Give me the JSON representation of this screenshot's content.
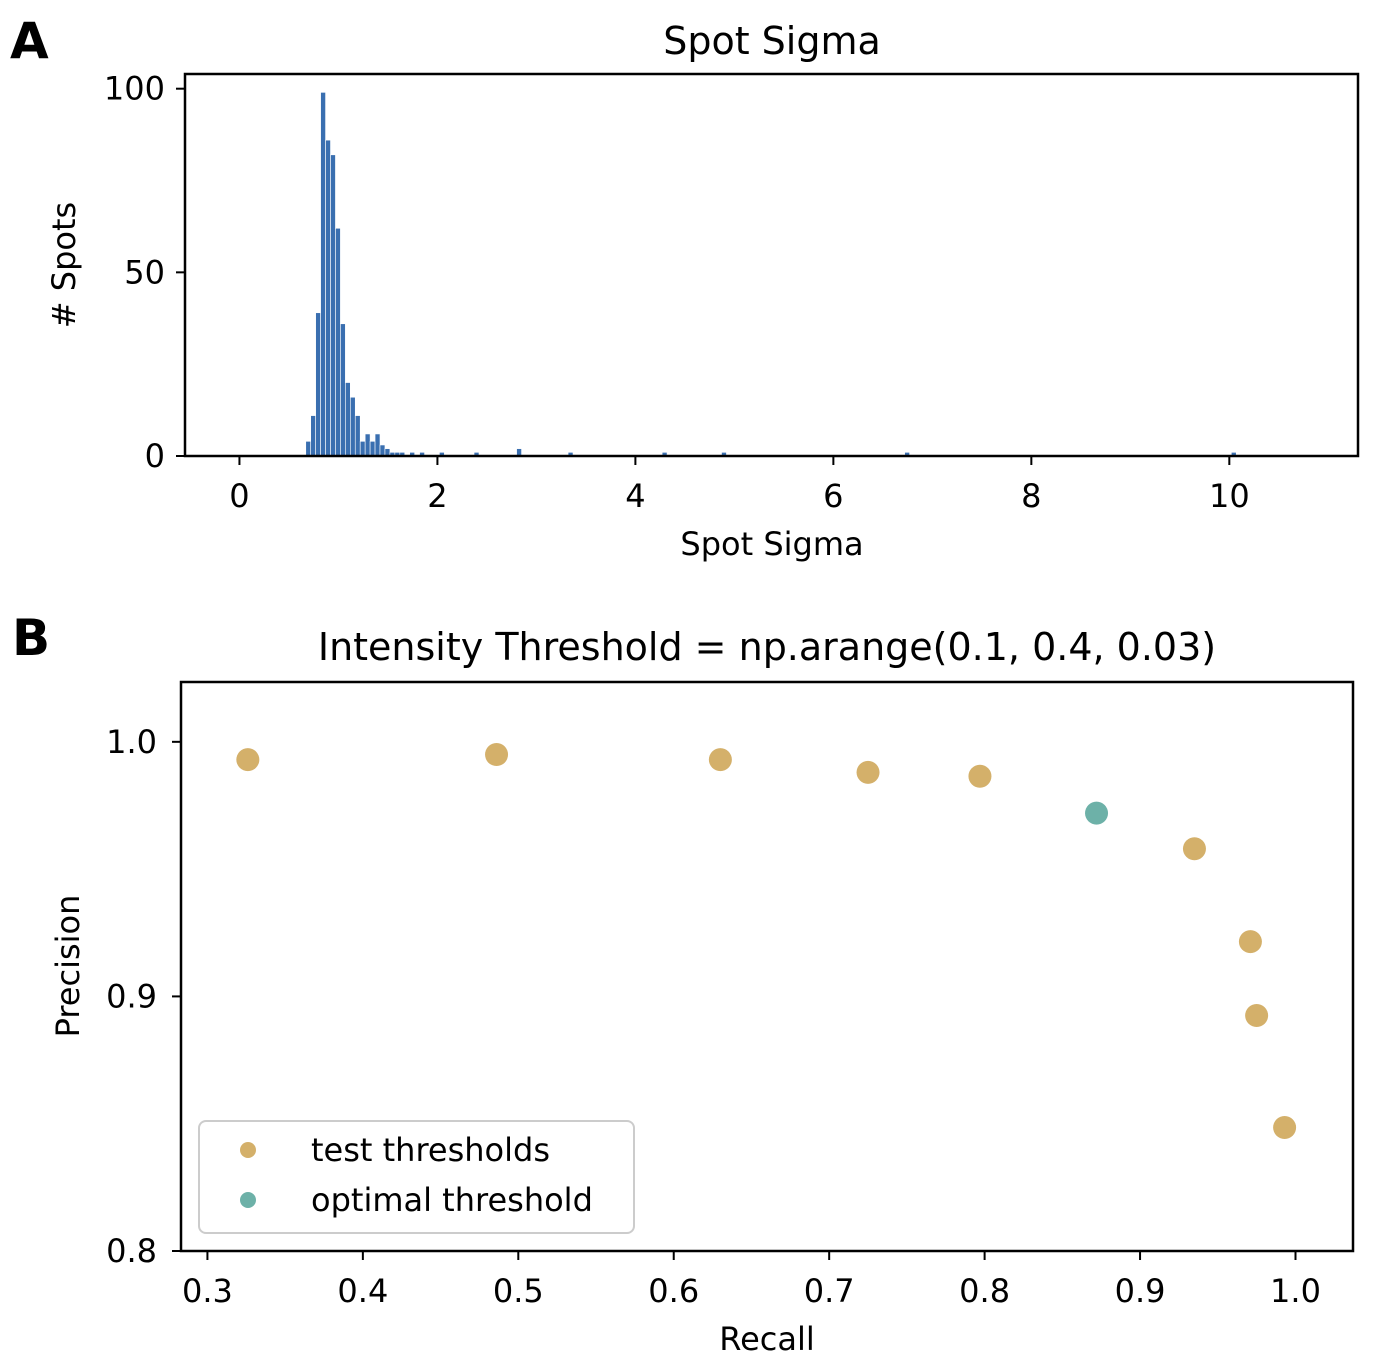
{
  "panel_labels": {
    "a": "A",
    "b": "B"
  },
  "chart_data": [
    {
      "type": "bar",
      "title": "Spot Sigma",
      "xlabel": "Spot Sigma",
      "ylabel": "# Spots",
      "xlim": [
        -0.55,
        11.3
      ],
      "ylim": [
        0,
        104
      ],
      "xticks": [
        "0",
        "2",
        "4",
        "6",
        "8",
        "10"
      ],
      "xtick_values": [
        0,
        2,
        4,
        6,
        8,
        10
      ],
      "yticks": [
        "0",
        "50",
        "100"
      ],
      "ytick_values": [
        0,
        50,
        100
      ],
      "bin_width": 0.05,
      "bin_starts": [
        0.67,
        0.72,
        0.77,
        0.82,
        0.87,
        0.92,
        0.97,
        1.02,
        1.07,
        1.12,
        1.17,
        1.22,
        1.27,
        1.32,
        1.37,
        1.42,
        1.47,
        1.52,
        1.57,
        1.62,
        1.72,
        1.82,
        2.02,
        2.37,
        2.8,
        3.32,
        4.27,
        4.87,
        6.72,
        10.02
      ],
      "counts": [
        4,
        11,
        39,
        99,
        86,
        82,
        62,
        36,
        20,
        16,
        11,
        4,
        6,
        4,
        6,
        3,
        2,
        1,
        1,
        1,
        1,
        1,
        1,
        1,
        2,
        1,
        1,
        1,
        1,
        1
      ],
      "colors": {
        "bar": "#3a6fb0"
      }
    },
    {
      "type": "scatter",
      "title": "Intensity Threshold = np.arange(0.1, 0.4, 0.03)",
      "xlabel": "Recall",
      "ylabel": "Precision",
      "xlim": [
        0.283,
        1.037
      ],
      "ylim": [
        0.8,
        1.0235
      ],
      "xticks": [
        "0.3",
        "0.4",
        "0.5",
        "0.6",
        "0.7",
        "0.8",
        "0.9",
        "1.0"
      ],
      "xtick_values": [
        0.3,
        0.4,
        0.5,
        0.6,
        0.7,
        0.8,
        0.9,
        1.0
      ],
      "yticks": [
        "0.8",
        "0.9",
        "1.0"
      ],
      "ytick_values": [
        0.8,
        0.9,
        1.0
      ],
      "legend_position": "lower-left",
      "series": [
        {
          "name": "test thresholds",
          "color": "#d4b06a",
          "points": [
            [
              0.326,
              0.993
            ],
            [
              0.486,
              0.995
            ],
            [
              0.63,
              0.993
            ],
            [
              0.725,
              0.988
            ],
            [
              0.797,
              0.9865
            ],
            [
              0.935,
              0.958
            ],
            [
              0.971,
              0.9215
            ],
            [
              0.975,
              0.8925
            ],
            [
              0.993,
              0.8485
            ]
          ]
        },
        {
          "name": "optimal threshold",
          "color": "#6db1a8",
          "points": [
            [
              0.872,
              0.972
            ]
          ]
        }
      ]
    }
  ]
}
